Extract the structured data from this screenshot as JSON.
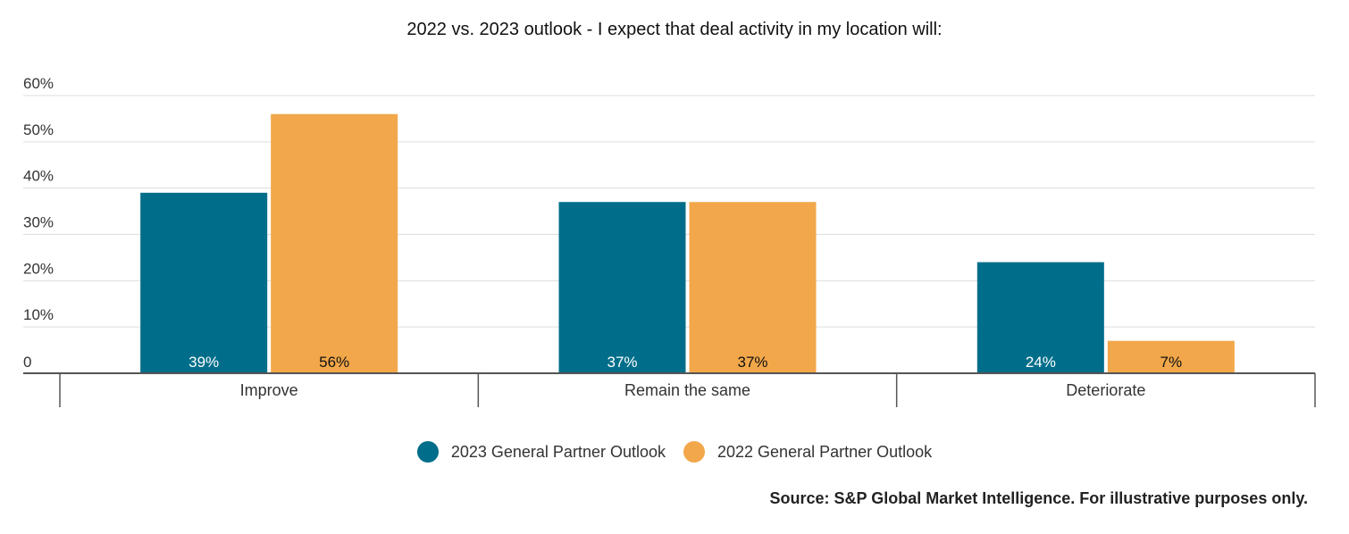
{
  "chart_data": {
    "type": "bar",
    "title": "2022 vs. 2023 outlook - I expect that deal activity in my location will:",
    "categories": [
      "Improve",
      "Remain the same",
      "Deteriorate"
    ],
    "series": [
      {
        "name": "2023 General Partner Outlook",
        "values": [
          39,
          37,
          24
        ],
        "color": "#006e8a",
        "label_color": "#ffffff"
      },
      {
        "name": "2022 General Partner Outlook",
        "values": [
          56,
          37,
          7
        ],
        "color": "#f2a74a",
        "label_color": "#111111"
      }
    ],
    "data_labels": [
      [
        "39%",
        "37%",
        "24%"
      ],
      [
        "56%",
        "37%",
        "7%"
      ]
    ],
    "ylim": [
      0,
      60
    ],
    "y_ticks": [
      0,
      10,
      20,
      30,
      40,
      50,
      60
    ],
    "y_tick_labels": [
      "0",
      "10%",
      "20%",
      "30%",
      "40%",
      "50%",
      "60%"
    ],
    "xlabel": "",
    "ylabel": "",
    "grid": true,
    "legend_position": "bottom"
  },
  "source_note": "Source: S&P Global Market Intelligence. For illustrative purposes only."
}
